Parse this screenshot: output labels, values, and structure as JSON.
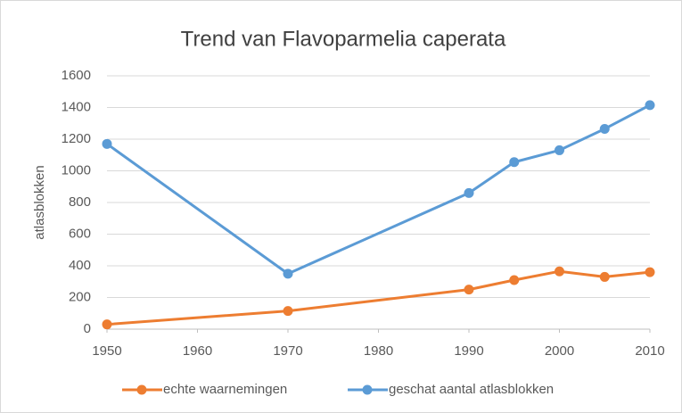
{
  "chart_data": {
    "type": "line",
    "title": "Trend van Flavoparmelia caperata",
    "ylabel": "atlasblokken",
    "x": [
      1950,
      1970,
      1990,
      1995,
      2000,
      2005,
      2010
    ],
    "series": [
      {
        "name": "echte waarnemingen",
        "color": "#ed7d31",
        "values": [
          30,
          115,
          250,
          310,
          365,
          330,
          360
        ]
      },
      {
        "name": "geschat aantal atlasblokken",
        "color": "#5b9bd5",
        "values": [
          1170,
          350,
          860,
          1055,
          1130,
          1265,
          1415
        ]
      }
    ],
    "xlim": [
      1950,
      2010
    ],
    "xticks": [
      1950,
      1960,
      1970,
      1980,
      1990,
      2000,
      2010
    ],
    "ylim": [
      0,
      1600
    ],
    "yticks": [
      0,
      200,
      400,
      600,
      800,
      1000,
      1200,
      1400,
      1600
    ],
    "grid": true,
    "legend": "bottom"
  }
}
